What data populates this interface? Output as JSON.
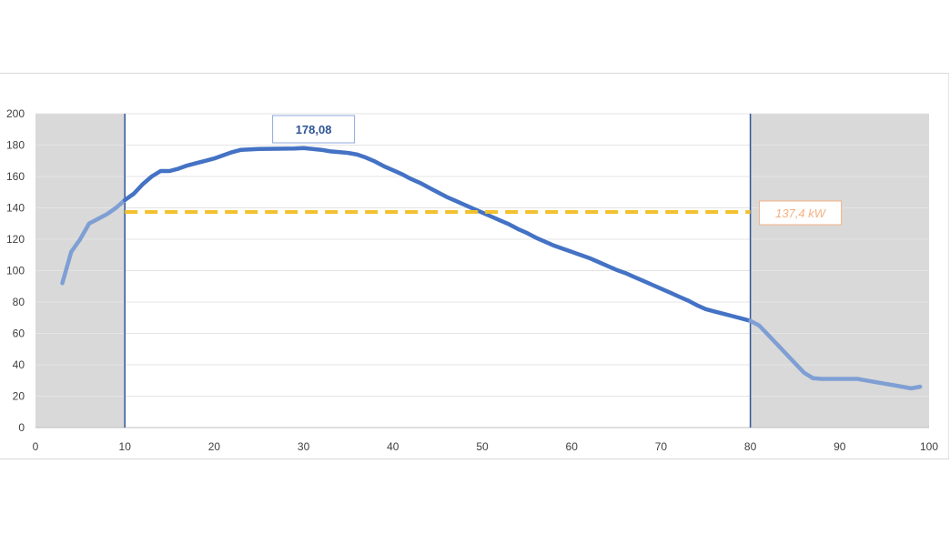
{
  "chart_data": {
    "type": "line",
    "title": "",
    "xlabel": "",
    "ylabel": "",
    "xlim": [
      0,
      100
    ],
    "ylim": [
      0,
      200
    ],
    "x_ticks": [
      0,
      10,
      20,
      30,
      40,
      50,
      60,
      70,
      80,
      90,
      100
    ],
    "y_ticks": [
      0,
      20,
      40,
      60,
      80,
      100,
      120,
      140,
      160,
      180,
      200
    ],
    "grid": "horizontal",
    "shaded_ranges": [
      [
        0,
        10
      ],
      [
        80,
        100
      ]
    ],
    "vertical_lines": [
      10,
      80
    ],
    "series": [
      {
        "name": "",
        "color": "#4472c4",
        "points": [
          [
            3,
            92
          ],
          [
            4,
            112
          ],
          [
            5,
            120
          ],
          [
            6,
            130
          ],
          [
            7,
            133
          ],
          [
            8,
            136
          ],
          [
            9,
            140
          ],
          [
            10,
            145
          ],
          [
            11,
            149
          ],
          [
            12,
            155
          ],
          [
            13,
            160
          ],
          [
            14,
            163.5
          ],
          [
            15,
            163.5
          ],
          [
            16,
            165
          ],
          [
            17,
            167
          ],
          [
            18,
            168.5
          ],
          [
            19,
            170
          ],
          [
            20,
            171.5
          ],
          [
            21,
            173.5
          ],
          [
            22,
            175.5
          ],
          [
            23,
            177
          ],
          [
            25,
            177.5
          ],
          [
            27,
            177.7
          ],
          [
            29,
            177.8
          ],
          [
            30,
            178.08
          ],
          [
            31,
            177.5
          ],
          [
            32,
            177
          ],
          [
            33,
            176
          ],
          [
            35,
            175
          ],
          [
            36,
            174
          ],
          [
            37,
            172
          ],
          [
            38,
            169.5
          ],
          [
            39,
            166.5
          ],
          [
            40,
            164
          ],
          [
            41,
            161.5
          ],
          [
            42,
            158.5
          ],
          [
            43,
            156
          ],
          [
            44,
            153
          ],
          [
            45,
            150
          ],
          [
            46,
            147
          ],
          [
            47,
            144.5
          ],
          [
            48,
            142
          ],
          [
            49,
            139.5
          ],
          [
            50,
            137
          ],
          [
            51,
            134.5
          ],
          [
            52,
            132
          ],
          [
            53,
            129.5
          ],
          [
            54,
            126.5
          ],
          [
            55,
            124
          ],
          [
            56,
            121
          ],
          [
            57,
            118.5
          ],
          [
            58,
            116
          ],
          [
            59,
            114
          ],
          [
            60,
            112
          ],
          [
            61,
            110
          ],
          [
            62,
            108
          ],
          [
            63,
            105.5
          ],
          [
            64,
            103
          ],
          [
            65,
            100.5
          ],
          [
            66,
            98.5
          ],
          [
            67,
            96
          ],
          [
            68,
            93.5
          ],
          [
            69,
            91
          ],
          [
            70,
            88.5
          ],
          [
            71,
            86
          ],
          [
            72,
            83.5
          ],
          [
            73,
            81
          ],
          [
            74,
            78
          ],
          [
            75,
            75.5
          ],
          [
            76,
            74
          ],
          [
            77,
            72.5
          ],
          [
            78,
            71
          ],
          [
            79,
            69.5
          ],
          [
            80,
            68
          ],
          [
            81,
            65
          ],
          [
            82,
            59
          ],
          [
            83,
            53
          ],
          [
            84,
            47
          ],
          [
            85,
            41
          ],
          [
            86,
            35
          ],
          [
            87,
            31.5
          ],
          [
            88,
            31
          ],
          [
            90,
            31
          ],
          [
            92,
            31
          ],
          [
            93,
            30
          ],
          [
            94,
            29
          ],
          [
            95,
            28
          ],
          [
            96,
            27
          ],
          [
            97,
            26
          ],
          [
            98,
            25
          ],
          [
            99,
            26
          ]
        ]
      }
    ],
    "reference_line": {
      "y": 137.4,
      "x_range": [
        10,
        80
      ],
      "label": "137,4 kW",
      "color": "#f2c12e",
      "label_color": "#f4b183"
    },
    "peak_annotation": {
      "x": 30,
      "y": 178.08,
      "label": "178,08"
    }
  }
}
